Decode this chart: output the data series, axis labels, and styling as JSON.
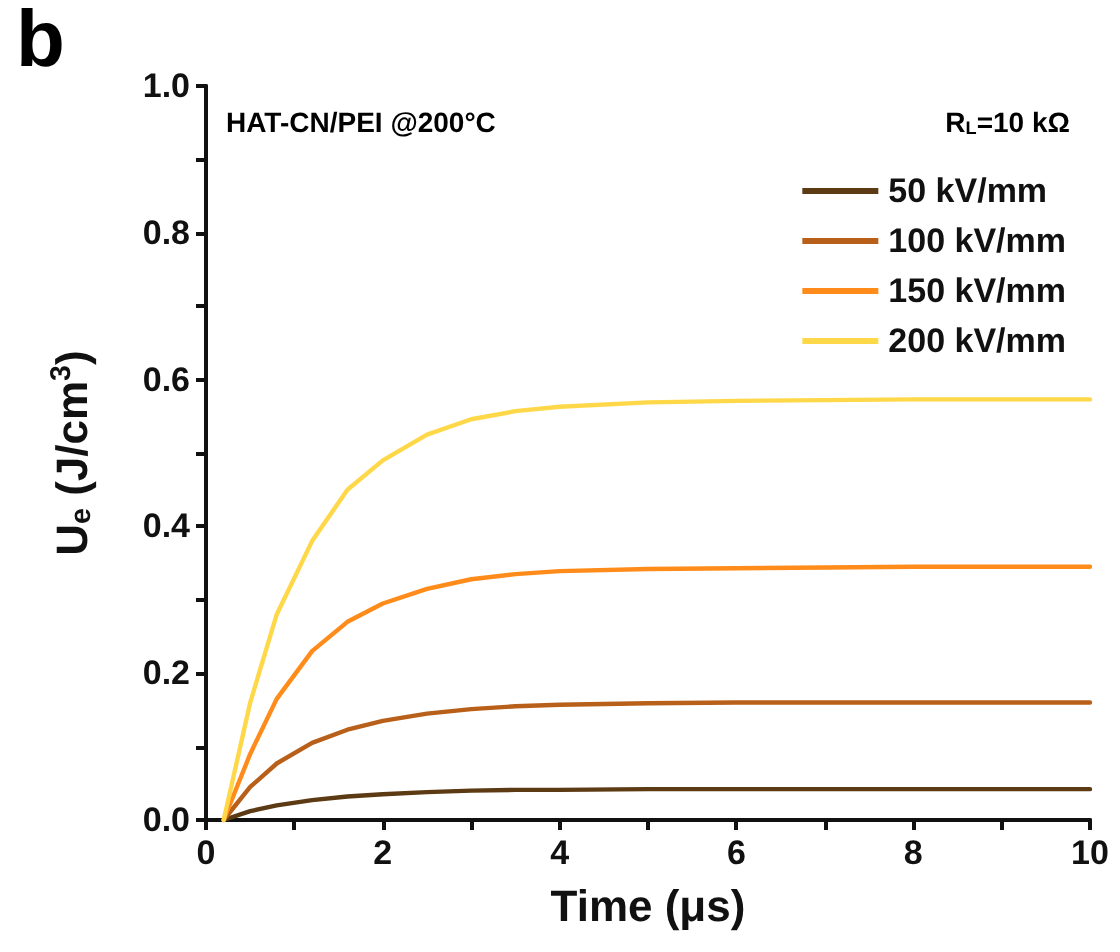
{
  "chart_data": {
    "type": "line",
    "xlabel": "Time (μs)",
    "ylabel": "U$_{e}$ (J/cm$^{3}$)",
    "annotations": [
      "b",
      "HAT-CN/PEI @200°C",
      "R$_{L}$=10 kΩ"
    ],
    "x": [
      0.2,
      0.5,
      0.8,
      1.2,
      1.6,
      2,
      2.5,
      3,
      3.5,
      4,
      5,
      6,
      7,
      8,
      10
    ],
    "series": [
      {
        "name": "50 kV/mm",
        "color": "#5c3a14",
        "values": [
          0,
          0.012,
          0.02,
          0.027,
          0.032,
          0.035,
          0.038,
          0.04,
          0.041,
          0.041,
          0.042,
          0.042,
          0.042,
          0.042,
          0.042
        ]
      },
      {
        "name": "100 kV/mm",
        "color": "#b8601a",
        "values": [
          0,
          0.045,
          0.077,
          0.105,
          0.123,
          0.135,
          0.145,
          0.151,
          0.155,
          0.157,
          0.159,
          0.16,
          0.16,
          0.16,
          0.16
        ]
      },
      {
        "name": "150 kV/mm",
        "color": "#ff8c1a",
        "values": [
          0,
          0.09,
          0.165,
          0.23,
          0.27,
          0.295,
          0.315,
          0.328,
          0.335,
          0.339,
          0.342,
          0.343,
          0.344,
          0.345,
          0.345
        ]
      },
      {
        "name": "200 kV/mm",
        "color": "#ffd84a",
        "values": [
          0,
          0.16,
          0.28,
          0.38,
          0.45,
          0.49,
          0.525,
          0.546,
          0.557,
          0.563,
          0.569,
          0.571,
          0.572,
          0.573,
          0.573
        ]
      }
    ],
    "xlim": [
      0,
      10
    ],
    "xticks": [
      0,
      {
        "value": 1,
        "label": null
      },
      2,
      {
        "value": 3,
        "label": null
      },
      4,
      {
        "value": 5,
        "label": null
      },
      6,
      {
        "value": 7,
        "label": null
      },
      8,
      {
        "value": 9,
        "label": null
      },
      10
    ],
    "ylim": [
      0,
      1
    ],
    "yticks": [
      {
        "value": 0,
        "label": "0.0"
      },
      {
        "value": 0.1,
        "label": null
      },
      0.2,
      {
        "value": 0.3,
        "label": null
      },
      0.4,
      {
        "value": 0.5,
        "label": null
      },
      0.6,
      {
        "value": 0.7,
        "label": null
      },
      0.8,
      {
        "value": 0.9,
        "label": null
      },
      {
        "value": 1,
        "label": "1.0"
      }
    ],
    "legend": "top right",
    "grid": false,
    "marker": "none",
    "line_style": "solid"
  }
}
